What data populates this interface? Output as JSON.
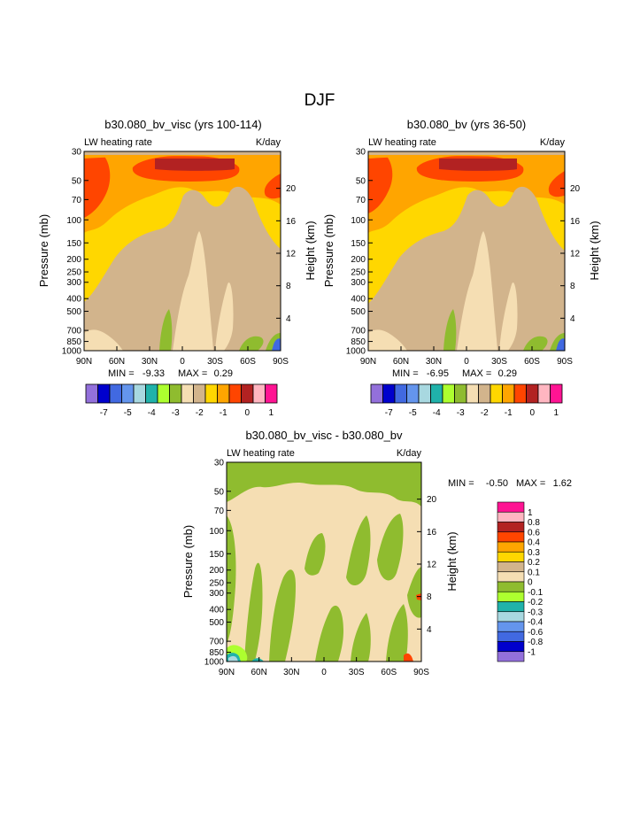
{
  "page": {
    "title": "DJF"
  },
  "panels": [
    {
      "id": "left",
      "title": "b30.080_bv_visc (yrs 100-114)",
      "left_label": "LW heating rate",
      "right_label": "K/day",
      "stats": {
        "min_label": "MIN =",
        "min_value": "-9.33",
        "max_label": "MAX =",
        "max_value": "0.29"
      }
    },
    {
      "id": "right",
      "title": "b30.080_bv (yrs 36-50)",
      "left_label": "LW heating rate",
      "right_label": "K/day",
      "stats": {
        "min_label": "MIN =",
        "min_value": "-6.95",
        "max_label": "MAX =",
        "max_value": "0.29"
      }
    },
    {
      "id": "diff",
      "title": "b30.080_bv_visc - b30.080_bv",
      "left_label": "LW heating rate",
      "right_label": "K/day",
      "stats": {
        "min_label": "MIN =",
        "min_value": "-0.50",
        "max_label": "MAX =",
        "max_value": "1.62"
      }
    }
  ],
  "axes": {
    "ylabel": "Pressure (mb)",
    "y2label": "Height (km)",
    "pressure_ticks": [
      "30",
      "50",
      "70",
      "100",
      "150",
      "200",
      "250",
      "300",
      "400",
      "500",
      "700",
      "850",
      "1000"
    ],
    "pressure_values": [
      30,
      50,
      70,
      100,
      150,
      200,
      250,
      300,
      400,
      500,
      700,
      850,
      1000
    ],
    "height_ticks": [
      "20",
      "16",
      "12",
      "8",
      "4"
    ],
    "height_values": [
      20,
      16,
      12,
      8,
      4
    ],
    "lat_ticks": [
      "90N",
      "60N",
      "30N",
      "0",
      "30S",
      "60S",
      "90S"
    ]
  },
  "colorbars": {
    "top": {
      "colors": [
        "#9370db",
        "#0000cd",
        "#4169e1",
        "#6495ed",
        "#a8d8e0",
        "#20b2aa",
        "#adff2f",
        "#8fbc2f",
        "#f5deb3",
        "#d2b48c",
        "#ffd700",
        "#ffa500",
        "#ff4500",
        "#b22222",
        "#ffb6c1",
        "#ff1493"
      ],
      "labels": [
        "-7",
        "-5",
        "-4",
        "-3",
        "-2",
        "-1",
        "0",
        "1"
      ]
    },
    "diff": {
      "colors": [
        "#ff1493",
        "#ffb6c1",
        "#b22222",
        "#ff4500",
        "#ffa500",
        "#ffd700",
        "#d2b48c",
        "#f5deb3",
        "#8fbc2f",
        "#adff2f",
        "#20b2aa",
        "#a8d8e0",
        "#6495ed",
        "#4169e1",
        "#0000cd",
        "#9370db"
      ],
      "labels": [
        "1",
        "0.8",
        "0.6",
        "0.4",
        "0.3",
        "0.2",
        "0.1",
        "0",
        "-0.1",
        "-0.2",
        "-0.3",
        "-0.4",
        "-0.6",
        "-0.8",
        "-1"
      ]
    }
  },
  "chart_data": [
    {
      "type": "heatmap",
      "title": "b30.080_bv_visc (yrs 100-114)",
      "field": "LW heating rate",
      "units": "K/day",
      "xlabel": "",
      "ylabel": "Pressure (mb)",
      "y2label": "Height (km)",
      "x_range": [
        "90N",
        "90S"
      ],
      "y_range": [
        1000,
        30
      ],
      "min": -9.33,
      "max": 0.29,
      "levels": [
        -7,
        -5,
        -4,
        -3,
        -2,
        -1,
        0,
        1
      ]
    },
    {
      "type": "heatmap",
      "title": "b30.080_bv (yrs 36-50)",
      "field": "LW heating rate",
      "units": "K/day",
      "xlabel": "",
      "ylabel": "Pressure (mb)",
      "y2label": "Height (km)",
      "x_range": [
        "90N",
        "90S"
      ],
      "y_range": [
        1000,
        30
      ],
      "min": -6.95,
      "max": 0.29,
      "levels": [
        -7,
        -5,
        -4,
        -3,
        -2,
        -1,
        0,
        1
      ]
    },
    {
      "type": "heatmap",
      "title": "b30.080_bv_visc - b30.080_bv",
      "field": "LW heating rate",
      "units": "K/day",
      "xlabel": "",
      "ylabel": "Pressure (mb)",
      "y2label": "Height (km)",
      "x_range": [
        "90N",
        "90S"
      ],
      "y_range": [
        1000,
        30
      ],
      "min": -0.5,
      "max": 1.62,
      "levels": [
        1,
        0.8,
        0.6,
        0.4,
        0.3,
        0.2,
        0.1,
        0,
        -0.1,
        -0.2,
        -0.3,
        -0.4,
        -0.6,
        -0.8,
        -1
      ]
    }
  ]
}
